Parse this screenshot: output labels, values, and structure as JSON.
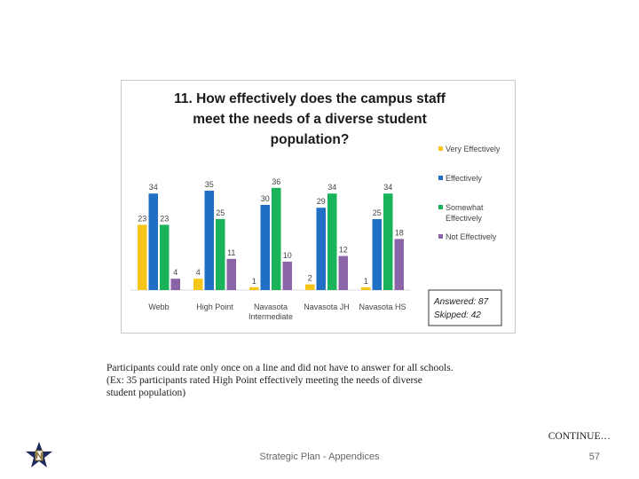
{
  "chart_data": {
    "type": "bar",
    "title_lines": [
      "11. How effectively does the campus staff",
      "meet the needs of a diverse student",
      "population?"
    ],
    "categories": [
      "Webb",
      "High Point",
      "Navasota Intermediate",
      "Navasota JH",
      "Navasota HS"
    ],
    "category_labels": [
      [
        "Webb"
      ],
      [
        "High Point"
      ],
      [
        "Navasota",
        "Intermediate"
      ],
      [
        "Navasota JH"
      ],
      [
        "Navasota HS"
      ]
    ],
    "series": [
      {
        "name": "Very Effectively",
        "legend_lines": [
          "Very Effectively"
        ],
        "color": "#f5c518",
        "values": [
          23,
          4,
          1,
          2,
          1
        ]
      },
      {
        "name": "Effectively",
        "legend_lines": [
          "Effectively"
        ],
        "color": "#1f6fc5",
        "values": [
          34,
          35,
          30,
          29,
          25
        ]
      },
      {
        "name": "Somewhat Effectively",
        "legend_lines": [
          "Somewhat",
          "Effectively"
        ],
        "color": "#19b45a",
        "values": [
          23,
          25,
          36,
          34,
          34
        ]
      },
      {
        "name": "Not Effectively",
        "legend_lines": [
          "Not Effectively"
        ],
        "color": "#8b64a8",
        "values": [
          4,
          11,
          10,
          12,
          18
        ]
      }
    ],
    "ylim": [
      0,
      40
    ],
    "answered_label": "Answered: 87",
    "skipped_label": "Skipped: 42"
  },
  "caption": {
    "lines": [
      "Participants could rate only once on a line and did not have to answer for all schools.",
      "(Ex: 35 participants rated High Point effectively meeting the needs of diverse",
      "student population)"
    ]
  },
  "continue_label": "CONTINUE…",
  "footer": {
    "text": "Strategic Plan - Appendices",
    "page_number": "57"
  }
}
